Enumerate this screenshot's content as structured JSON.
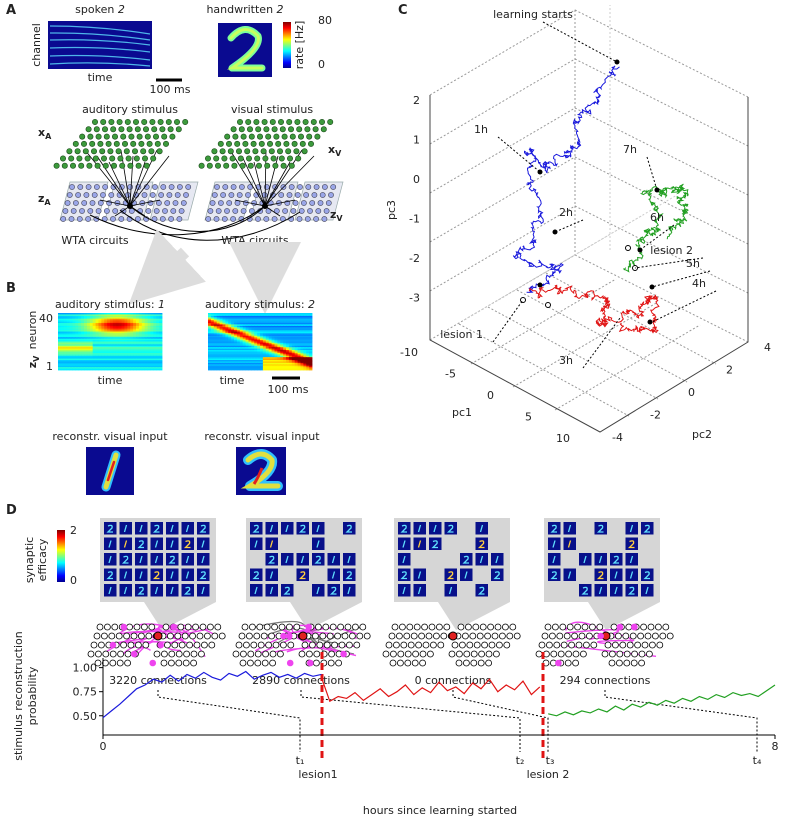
{
  "panel_labels": {
    "a": "A",
    "b": "B",
    "c": "C",
    "d": "D"
  },
  "panel_a": {
    "spoken": "spoken",
    "spoken_digit": "2",
    "handwritten": "handwritten",
    "handwritten_digit": "2",
    "channel_label": "channel",
    "time_label": "time",
    "scale_bar": "100 ms",
    "colorbar_label": "rate [Hz]",
    "colorbar_max": 80,
    "colorbar_min": 0,
    "auditory": "auditory stimulus",
    "visual": "visual stimulus",
    "x_a": {
      "base": "x",
      "sub": "A"
    },
    "x_v": {
      "base": "x",
      "sub": "V"
    },
    "z_a": {
      "base": "z",
      "sub": "A"
    },
    "z_v": {
      "base": "z",
      "sub": "V"
    },
    "wta_left": "WTA circuits",
    "wta_right": "WTA circuits"
  },
  "panel_b": {
    "title_left": {
      "text": "auditory stimulus: ",
      "digit": "1"
    },
    "title_right": {
      "text": "auditory stimulus: ",
      "digit": "2"
    },
    "neuron_label": "neuron",
    "z_v": {
      "base": "z",
      "sub": "V"
    },
    "neuron_max": 40,
    "neuron_min": 1,
    "time_left": "time",
    "time_right": "time",
    "scale_bar": "100 ms",
    "recon_left": "reconstr. visual input",
    "recon_right": "reconstr. visual input"
  },
  "panel_c": {
    "pc1_label": "pc1",
    "pc2_label": "pc2",
    "pc3_label": "pc3",
    "pc1_ticks": [
      -10,
      -5,
      0,
      5,
      10
    ],
    "pc2_ticks": [
      -4,
      -2,
      0,
      2,
      4
    ],
    "pc3_ticks": [
      2,
      1,
      0,
      -1,
      -2,
      -3
    ],
    "annotations": [
      "learning starts",
      "1h",
      "2h",
      "3h",
      "4h",
      "5h",
      "6h",
      "7h",
      "lesion 1",
      "lesion 2"
    ]
  },
  "panel_d": {
    "efficacy_label": [
      "synaptic",
      "efficacy"
    ],
    "colorbar_max": 2,
    "colorbar_min": 0,
    "connections": [
      "3220 connections",
      "2890 connections",
      "0 connections",
      "294 connections"
    ],
    "times": [
      "t₁",
      "t₂",
      "t₃",
      "t₄"
    ],
    "lesions": [
      "lesion1",
      "lesion 2"
    ]
  },
  "chart_data": {
    "type": "line",
    "ylabel": [
      "stimulus reconstruction",
      "probability"
    ],
    "xlabel": "hours since learning started",
    "xlim": [
      0,
      8
    ],
    "xticks": [
      0,
      8
    ],
    "ylim": [
      0.3,
      1.1
    ],
    "yticks": [
      {
        "value": 0.5,
        "label": "0.50"
      },
      {
        "value": 0.75,
        "label": "0.75"
      },
      {
        "value": 1.0,
        "label": "1.00"
      }
    ],
    "series": [
      {
        "color": "#1a1adc",
        "x": [
          0,
          0.1,
          0.2,
          0.3,
          0.4,
          0.5,
          0.6,
          0.7,
          0.8,
          0.9,
          1,
          1.1,
          1.2,
          1.3,
          1.4,
          1.5,
          1.6,
          1.7,
          1.8,
          1.9,
          2,
          2.1,
          2.2,
          2.3,
          2.4,
          2.5,
          2.6
        ],
        "values": [
          0.48,
          0.55,
          0.62,
          0.7,
          0.78,
          0.82,
          0.88,
          0.85,
          0.92,
          0.86,
          0.93,
          0.89,
          0.95,
          0.9,
          0.87,
          0.94,
          0.91,
          0.96,
          0.88,
          0.92,
          0.95,
          0.9,
          0.93,
          0.89,
          0.94,
          0.91,
          0.93
        ]
      },
      {
        "color": "#e01414",
        "x": [
          2.6,
          2.7,
          2.8,
          2.9,
          3,
          3.1,
          3.2,
          3.3,
          3.4,
          3.5,
          3.6,
          3.7,
          3.8,
          3.9,
          4,
          4.1,
          4.2,
          4.3,
          4.4,
          4.5,
          4.6,
          4.7,
          4.8,
          4.9,
          5,
          5.1,
          5.2
        ],
        "values": [
          0.9,
          0.65,
          0.7,
          0.68,
          0.74,
          0.66,
          0.72,
          0.78,
          0.7,
          0.75,
          0.82,
          0.72,
          0.79,
          0.74,
          0.85,
          0.76,
          0.8,
          0.73,
          0.84,
          0.78,
          0.88,
          0.75,
          0.82,
          0.77,
          0.86,
          0.72,
          0.8
        ]
      },
      {
        "color": "#22a022",
        "x": [
          5.3,
          5.4,
          5.5,
          5.6,
          5.7,
          5.8,
          5.9,
          6,
          6.1,
          6.2,
          6.3,
          6.4,
          6.5,
          6.6,
          6.7,
          6.8,
          6.9,
          7,
          7.1,
          7.2,
          7.3,
          7.4,
          7.5,
          7.6,
          7.7,
          7.8,
          7.9,
          8
        ],
        "values": [
          0.52,
          0.5,
          0.54,
          0.51,
          0.55,
          0.53,
          0.57,
          0.54,
          0.6,
          0.56,
          0.62,
          0.59,
          0.64,
          0.61,
          0.66,
          0.63,
          0.68,
          0.65,
          0.7,
          0.67,
          0.72,
          0.69,
          0.74,
          0.71,
          0.73,
          0.7,
          0.76,
          0.82
        ]
      }
    ]
  }
}
